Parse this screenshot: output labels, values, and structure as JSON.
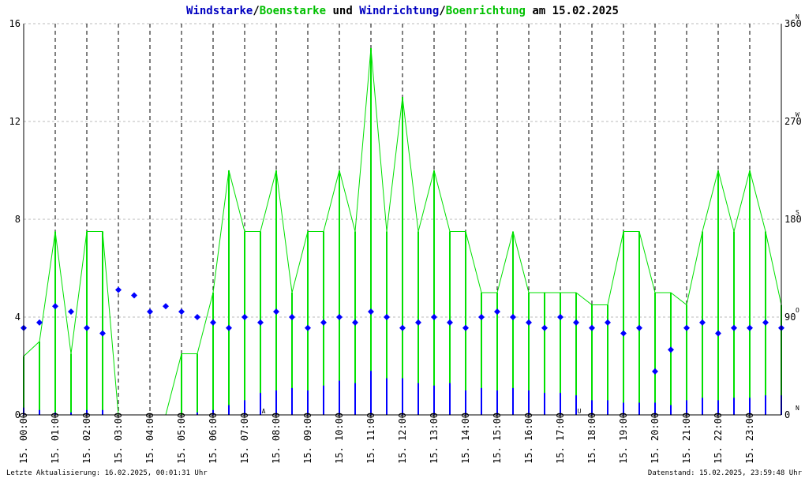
{
  "colors": {
    "wind": "#0000ff",
    "gust": "#00e000",
    "marker": "#cc0000"
  },
  "title": {
    "part1": "Windstarke",
    "sep1": "/",
    "part2": "Boenstarke",
    "mid": " und ",
    "part3": "Windrichtung",
    "sep2": "/",
    "part4": "Boenrichtung",
    "suffix": " am 15.02.2025"
  },
  "footer": {
    "left": "Letzte Aktualisierung: 16.02.2025, 00:01:31 Uhr",
    "right": "Datenstand: 15.02.2025, 23:59:48 Uhr"
  },
  "chart_data": {
    "type": "line",
    "ylim": [
      0,
      16
    ],
    "y_ticks": [
      "0",
      "4",
      "8",
      "12",
      "16"
    ],
    "y2lim": [
      0,
      360
    ],
    "y2_ticks": [
      "0",
      "90",
      "180",
      "270",
      "360"
    ],
    "compass_labels": [
      "N",
      "O",
      "S",
      "W",
      "N"
    ],
    "x_tick_labels": [
      "15. 00:00",
      "15. 01:00",
      "15. 02:00",
      "15. 03:00",
      "15. 04:00",
      "15. 05:00",
      "15. 06:00",
      "15. 07:00",
      "15. 08:00",
      "15. 09:00",
      "15. 10:00",
      "15. 11:00",
      "15. 12:00",
      "15. 13:00",
      "15. 14:00",
      "15. 15:00",
      "15. 16:00",
      "15. 17:00",
      "15. 18:00",
      "15. 19:00",
      "15. 20:00",
      "15. 21:00",
      "15. 22:00",
      "15. 23:00"
    ],
    "day_markers": [
      {
        "label": "A",
        "hour": 7.6
      },
      {
        "label": "U",
        "hour": 17.6
      }
    ],
    "series": [
      {
        "name": "Windstarke",
        "x": [
          0,
          0.5,
          1,
          1.5,
          2,
          2.5,
          3,
          3.5,
          4,
          4.5,
          5,
          5.5,
          6,
          6.5,
          7,
          7.5,
          8,
          8.5,
          9,
          9.5,
          10,
          10.5,
          11,
          11.5,
          12,
          12.5,
          13,
          13.5,
          14,
          14.5,
          15,
          15.5,
          16,
          16.5,
          17,
          17.5,
          18,
          18.5,
          19,
          19.5,
          20,
          20.5,
          21,
          21.5,
          22,
          22.5,
          23,
          23.5,
          24
        ],
        "y": [
          0.3,
          0.2,
          0.1,
          0.1,
          0.2,
          0.2,
          0,
          0,
          0,
          0,
          0,
          0.1,
          0.2,
          0.4,
          0.6,
          0.9,
          1.0,
          1.1,
          1.0,
          1.2,
          1.4,
          1.3,
          1.8,
          1.5,
          1.5,
          1.3,
          1.2,
          1.3,
          1.0,
          1.1,
          1.0,
          1.1,
          1.0,
          0.9,
          0.9,
          0.8,
          0.6,
          0.6,
          0.5,
          0.5,
          0.5,
          0.4,
          0.6,
          0.7,
          0.6,
          0.7,
          0.7,
          0.8,
          0.8
        ]
      },
      {
        "name": "Boenstarke",
        "x": [
          0,
          0.5,
          1,
          1.5,
          2,
          2.5,
          3,
          3.5,
          4,
          4.5,
          5,
          5.5,
          6,
          6.5,
          7,
          7.5,
          8,
          8.5,
          9,
          9.5,
          10,
          10.5,
          11,
          11.5,
          12,
          12.5,
          13,
          13.5,
          14,
          14.5,
          15,
          15.5,
          16,
          16.5,
          17,
          17.5,
          18,
          18.5,
          19,
          19.5,
          20,
          20.5,
          21,
          21.5,
          22,
          22.5,
          23,
          23.5,
          24
        ],
        "y": [
          2.4,
          3.0,
          7.5,
          2.5,
          7.5,
          7.5,
          0,
          0,
          0,
          0,
          2.5,
          2.5,
          5.0,
          10.0,
          7.5,
          7.5,
          10.0,
          5.0,
          7.5,
          7.5,
          10.0,
          7.5,
          15.0,
          7.5,
          13.0,
          7.5,
          10.0,
          7.5,
          7.5,
          5.0,
          5.0,
          7.5,
          5.0,
          5.0,
          5.0,
          5.0,
          4.5,
          4.5,
          7.5,
          7.5,
          5.0,
          5.0,
          4.5,
          7.5,
          10.0,
          7.5,
          10.0,
          7.5,
          4.5
        ]
      },
      {
        "name": "Windrichtung",
        "x": [
          0,
          0.5,
          1,
          1.5,
          2,
          2.5,
          3,
          3.5,
          4,
          4.5,
          5,
          5.5,
          6,
          6.5,
          7,
          7.5,
          8,
          8.5,
          9,
          9.5,
          10,
          10.5,
          11,
          11.5,
          12,
          12.5,
          13,
          13.5,
          14,
          14.5,
          15,
          15.5,
          16,
          16.5,
          17,
          17.5,
          18,
          18.5,
          19,
          19.5,
          20,
          20.5,
          21,
          21.5,
          22,
          22.5,
          23,
          23.5,
          24
        ],
        "y": [
          80,
          85,
          100,
          95,
          80,
          75,
          115,
          110,
          95,
          100,
          95,
          90,
          85,
          80,
          90,
          85,
          95,
          90,
          80,
          85,
          90,
          85,
          95,
          90,
          80,
          85,
          90,
          85,
          80,
          90,
          95,
          90,
          85,
          80,
          90,
          85,
          80,
          85,
          75,
          80,
          40,
          60,
          80,
          85,
          75,
          80,
          80,
          85,
          80
        ]
      }
    ]
  }
}
